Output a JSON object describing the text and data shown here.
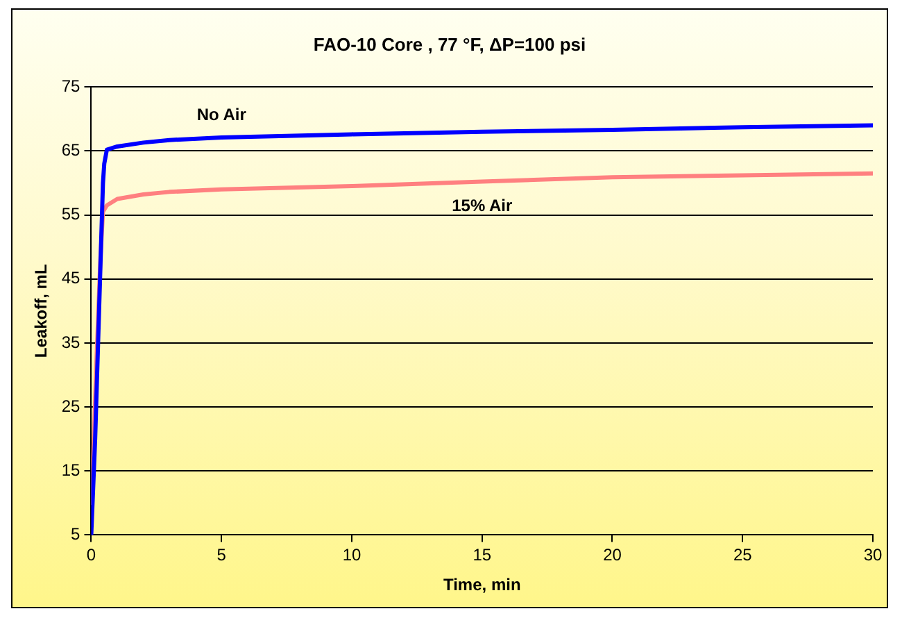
{
  "chart_data": {
    "type": "line",
    "title": "FAO-10 Core , 77 °F, ΔP=100 psi",
    "xlabel": "Time, min",
    "ylabel": "Leakoff, mL",
    "xlim": [
      0,
      30
    ],
    "xticks": [
      0,
      5,
      10,
      15,
      20,
      25,
      30
    ],
    "ylim": [
      5,
      75
    ],
    "yticks": [
      5,
      15,
      25,
      35,
      45,
      55,
      65,
      75
    ],
    "grid": "y",
    "legend": false,
    "marker": "none",
    "line_style": "solid",
    "series": [
      {
        "name": "No Air",
        "color": "#0000ff",
        "x": [
          0,
          0.15,
          0.3,
          0.45,
          0.5,
          0.6,
          1,
          2,
          3,
          5,
          10,
          15,
          20,
          25,
          30
        ],
        "values": [
          5,
          20,
          40,
          60,
          63,
          65.2,
          65.7,
          66.3,
          66.7,
          67.1,
          67.6,
          68,
          68.3,
          68.7,
          69
        ]
      },
      {
        "name": "15% Air",
        "color": "#ff8080",
        "x": [
          0,
          0.1,
          0.2,
          0.35,
          0.45,
          0.6,
          1,
          2,
          3,
          5,
          10,
          15,
          20,
          25,
          30
        ],
        "values": [
          10,
          20,
          32,
          48,
          55.5,
          56.5,
          57.5,
          58.2,
          58.6,
          59,
          59.5,
          60.2,
          60.9,
          61.2,
          61.5
        ]
      }
    ]
  }
}
